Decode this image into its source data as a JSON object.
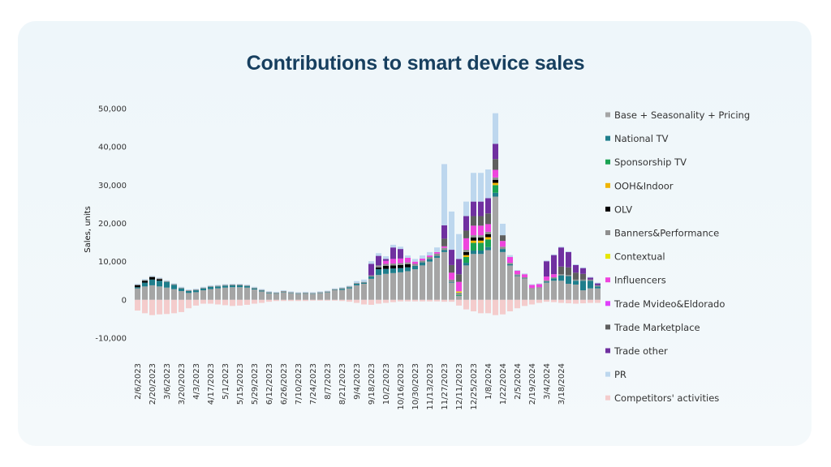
{
  "title": "Contributions to smart device sales",
  "chart_data": {
    "type": "bar",
    "stacked": true,
    "title": "Contributions to smart device sales",
    "ylabel": "Sales, units",
    "ylim": [
      -10000,
      50000
    ],
    "yticks": [
      -10000,
      0,
      10000,
      20000,
      30000,
      40000,
      50000
    ],
    "ytick_labels": [
      "-10,000",
      "0",
      "10,000",
      "20,000",
      "30,000",
      "40,000",
      "50,000"
    ],
    "xtick_labels": [
      "2/6/2023",
      "2/20/2023",
      "3/6/2023",
      "3/20/2023",
      "4/3/2023",
      "4/17/2023",
      "5/1/2023",
      "5/15/2023",
      "5/29/2023",
      "6/12/2023",
      "6/26/2023",
      "7/10/2023",
      "7/24/2023",
      "8/7/2023",
      "8/21/2023",
      "9/4/2023",
      "9/18/2023",
      "10/2/2023",
      "10/16/2023",
      "10/30/2023",
      "11/13/2023",
      "11/27/2023",
      "12/11/2023",
      "12/25/2023",
      "1/8/2024",
      "1/22/2024",
      "2/5/2024",
      "2/19/2024",
      "3/4/2024",
      "3/18/2024"
    ],
    "legend_position": "right",
    "grid": false,
    "series": [
      {
        "name": "Base + Seasonality + Pricing",
        "color": "#a5a5a5",
        "values": [
          3000,
          3500,
          3800,
          3500,
          3200,
          2800,
          2300,
          1800,
          2000,
          2500,
          2800,
          3000,
          3200,
          3300,
          3300,
          3200,
          2700,
          2200,
          1700,
          1600,
          2000,
          1700,
          1500,
          1600,
          1500,
          1700,
          1900,
          2500,
          2600,
          3000,
          3800,
          4200,
          5500,
          6500,
          6800,
          7000,
          7200,
          7500,
          8000,
          9000,
          10000,
          11000,
          12500,
          4500,
          1000,
          9000,
          12000,
          12000,
          13000,
          27000,
          12500,
          9000,
          6200,
          5500,
          2800,
          3000,
          4500,
          5000,
          5000,
          4200,
          4000,
          2500,
          3000,
          3000
        ]
      },
      {
        "name": "National TV",
        "color": "#1f7e8c",
        "values": [
          300,
          1000,
          1500,
          1500,
          1500,
          1100,
          700,
          500,
          500,
          500,
          600,
          500,
          500,
          500,
          500,
          400,
          300,
          200,
          150,
          100,
          100,
          100,
          100,
          100,
          100,
          100,
          100,
          100,
          300,
          300,
          400,
          300,
          600,
          1500,
          1300,
          1200,
          1100,
          1000,
          900,
          800,
          700,
          500,
          500,
          200,
          100,
          700,
          900,
          900,
          800,
          1000,
          800,
          300,
          200,
          100,
          0,
          0,
          300,
          600,
          1400,
          2000,
          1000,
          2500,
          2000,
          500
        ]
      },
      {
        "name": "Sponsorship TV",
        "color": "#1aa352",
        "values": [
          0,
          0,
          0,
          0,
          0,
          0,
          0,
          0,
          0,
          0,
          0,
          0,
          0,
          0,
          0,
          0,
          0,
          0,
          0,
          0,
          0,
          0,
          0,
          0,
          0,
          0,
          0,
          0,
          0,
          0,
          0,
          0,
          0,
          0,
          0,
          0,
          0,
          0,
          0,
          0,
          0,
          0,
          0,
          0,
          200,
          1500,
          2000,
          2000,
          2000,
          2000,
          0,
          0,
          0,
          0,
          0,
          0,
          0,
          0,
          0,
          0,
          0,
          0,
          0,
          0
        ]
      },
      {
        "name": "OOH&Indoor",
        "color": "#f0b400",
        "values": [
          0,
          0,
          0,
          0,
          0,
          0,
          0,
          0,
          0,
          0,
          0,
          0,
          0,
          0,
          0,
          0,
          0,
          0,
          0,
          0,
          0,
          0,
          0,
          0,
          0,
          0,
          0,
          0,
          0,
          0,
          0,
          0,
          0,
          0,
          0,
          0,
          0,
          0,
          0,
          0,
          0,
          0,
          0,
          0,
          0,
          500,
          600,
          600,
          600,
          600,
          0,
          0,
          0,
          0,
          0,
          0,
          0,
          0,
          0,
          0,
          0,
          0,
          0,
          0
        ]
      },
      {
        "name": "OLV",
        "color": "#000000",
        "values": [
          500,
          500,
          600,
          400,
          0,
          0,
          0,
          0,
          0,
          0,
          0,
          0,
          0,
          0,
          0,
          0,
          0,
          0,
          0,
          0,
          0,
          0,
          0,
          0,
          0,
          0,
          0,
          0,
          0,
          0,
          0,
          0,
          0,
          500,
          800,
          800,
          800,
          800,
          0,
          0,
          0,
          0,
          0,
          0,
          0,
          800,
          800,
          800,
          800,
          800,
          0,
          0,
          0,
          0,
          0,
          0,
          0,
          0,
          0,
          0,
          0,
          0,
          0,
          0
        ]
      },
      {
        "name": "Banners&Performance",
        "color": "#8f8f8f",
        "values": [
          200,
          200,
          200,
          200,
          200,
          200,
          200,
          200,
          200,
          200,
          200,
          200,
          200,
          200,
          200,
          200,
          200,
          200,
          200,
          200,
          200,
          200,
          200,
          200,
          200,
          200,
          200,
          200,
          200,
          200,
          200,
          200,
          300,
          500,
          500,
          500,
          500,
          500,
          500,
          500,
          500,
          600,
          600,
          600,
          600,
          600,
          600,
          600,
          600,
          600,
          600,
          400,
          300,
          300,
          300,
          300,
          300,
          300,
          300,
          300,
          300,
          300,
          300,
          300
        ]
      },
      {
        "name": "Contextual",
        "color": "#e6e600",
        "values": [
          0,
          0,
          0,
          0,
          0,
          0,
          0,
          0,
          0,
          0,
          0,
          0,
          0,
          0,
          0,
          0,
          0,
          0,
          0,
          0,
          0,
          0,
          0,
          0,
          0,
          0,
          0,
          0,
          0,
          0,
          0,
          0,
          0,
          0,
          0,
          0,
          0,
          0,
          0,
          0,
          0,
          0,
          0,
          0,
          300,
          0,
          0,
          0,
          0,
          0,
          0,
          0,
          0,
          0,
          0,
          0,
          0,
          0,
          0,
          0,
          0,
          0,
          0,
          0
        ]
      },
      {
        "name": "Influencers",
        "color": "#ee44dd",
        "values": [
          0,
          0,
          0,
          0,
          0,
          0,
          0,
          0,
          0,
          0,
          0,
          0,
          0,
          0,
          0,
          0,
          0,
          0,
          0,
          0,
          0,
          0,
          0,
          0,
          0,
          0,
          0,
          0,
          0,
          0,
          0,
          0,
          0,
          0,
          800,
          1200,
          1200,
          1200,
          600,
          500,
          400,
          400,
          400,
          1800,
          2500,
          3000,
          2500,
          2500,
          2000,
          2000,
          1500,
          1500,
          900,
          800,
          800,
          800,
          1000,
          800,
          0,
          0,
          0,
          0,
          0,
          0
        ]
      },
      {
        "name": "Trade Mvideo&Eldorado",
        "color": "#e040fb",
        "values": [
          0,
          0,
          0,
          0,
          0,
          0,
          0,
          0,
          0,
          0,
          0,
          0,
          0,
          0,
          0,
          0,
          0,
          0,
          0,
          0,
          0,
          0,
          0,
          0,
          0,
          0,
          0,
          0,
          0,
          0,
          0,
          0,
          0,
          0,
          0,
          0,
          0,
          0,
          0,
          0,
          0,
          0,
          0,
          0,
          0,
          0,
          0,
          0,
          0,
          0,
          0,
          0,
          0,
          0,
          0,
          0,
          0,
          0,
          0,
          0,
          0,
          0,
          0,
          0
        ]
      },
      {
        "name": "Trade Marketplace",
        "color": "#5f5f5f",
        "values": [
          0,
          0,
          0,
          0,
          0,
          0,
          0,
          0,
          0,
          0,
          0,
          0,
          0,
          0,
          0,
          0,
          0,
          0,
          0,
          0,
          0,
          0,
          0,
          0,
          0,
          0,
          0,
          0,
          0,
          0,
          0,
          0,
          0,
          0,
          0,
          0,
          0,
          0,
          0,
          0,
          0,
          0,
          2000,
          2000,
          2000,
          2000,
          2500,
          2500,
          2800,
          2800,
          1500,
          0,
          0,
          0,
          0,
          0,
          0,
          0,
          2000,
          2000,
          1800,
          1500,
          0,
          0
        ]
      },
      {
        "name": "Trade other",
        "color": "#7030a0",
        "values": [
          0,
          0,
          0,
          0,
          0,
          0,
          0,
          0,
          0,
          0,
          0,
          0,
          0,
          0,
          0,
          0,
          0,
          0,
          0,
          0,
          0,
          0,
          0,
          0,
          0,
          0,
          0,
          0,
          0,
          0,
          0,
          0,
          3000,
          2500,
          500,
          3000,
          2500,
          0,
          0,
          0,
          0,
          0,
          3500,
          4000,
          4000,
          3800,
          3800,
          3800,
          4000,
          4000,
          0,
          0,
          0,
          0,
          0,
          0,
          4000,
          5000,
          5000,
          4000,
          2000,
          1500,
          500,
          500
        ]
      },
      {
        "name": "PR",
        "color": "#bdd7ee",
        "values": [
          200,
          200,
          200,
          200,
          200,
          200,
          200,
          200,
          200,
          200,
          200,
          200,
          200,
          200,
          200,
          200,
          200,
          200,
          200,
          200,
          200,
          200,
          200,
          200,
          200,
          200,
          200,
          200,
          200,
          200,
          500,
          600,
          700,
          700,
          700,
          700,
          600,
          600,
          700,
          800,
          900,
          1200,
          16000,
          10000,
          6500,
          3800,
          7500,
          7500,
          7500,
          8000,
          3000,
          500,
          200,
          200,
          200,
          200,
          200,
          200,
          200,
          200,
          200,
          200,
          200,
          200
        ]
      },
      {
        "name": "Competitors' activities",
        "color": "#f4cccc",
        "values": [
          -2800,
          -3500,
          -4000,
          -3800,
          -3700,
          -3500,
          -3200,
          -2200,
          -1500,
          -1000,
          -1000,
          -1200,
          -1400,
          -1600,
          -1500,
          -1300,
          -1000,
          -800,
          -500,
          -300,
          -300,
          -300,
          -300,
          -300,
          -200,
          -200,
          -200,
          -200,
          -300,
          -500,
          -800,
          -1200,
          -1300,
          -1000,
          -800,
          -600,
          -400,
          -400,
          -400,
          -400,
          -400,
          -400,
          -500,
          -500,
          -1500,
          -2500,
          -3000,
          -3500,
          -3500,
          -4000,
          -3800,
          -3000,
          -2200,
          -1600,
          -1200,
          -800,
          -500,
          -600,
          -800,
          -900,
          -1000,
          -900,
          -800,
          -800
        ]
      }
    ]
  }
}
